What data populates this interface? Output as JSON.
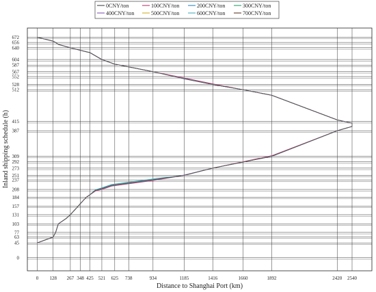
{
  "chart_data": {
    "type": "line",
    "xlabel": "Distance to Shanghai Port (km)",
    "ylabel": "Inland shipping schedule (h)",
    "x_ticks": [
      0,
      128,
      267,
      348,
      425,
      521,
      625,
      738,
      934,
      1185,
      1416,
      1660,
      1892,
      2420,
      2540
    ],
    "y_ticks": [
      0,
      45,
      63,
      77,
      103,
      131,
      157,
      184,
      208,
      237,
      251,
      273,
      292,
      309,
      387,
      415,
      512,
      528,
      552,
      567,
      587,
      604,
      640,
      656,
      672
    ],
    "xlim": [
      -80,
      2700
    ],
    "ylim": [
      -40,
      700
    ],
    "grid": true,
    "legend_position": "top",
    "colors": {
      "0CNY/ton": "#555555",
      "100CNY/ton": "#c0497a",
      "200CNY/ton": "#3e93c9",
      "300CNY/ton": "#3aa87a",
      "400CNY/ton": "#8a68b8",
      "500CNY/ton": "#d4b43a",
      "600CNY/ton": "#5ab2c2",
      "700CNY/ton": "#6b4a3a"
    },
    "series": [
      {
        "name": "0CNY/ton",
        "x": [
          0,
          128,
          148,
          170,
          235,
          267,
          330,
          348,
          395,
          425,
          470,
          521,
          600,
          934,
          1185,
          1416,
          1892,
          2420,
          2540,
          2540,
          2420,
          1892,
          1660,
          1416,
          1185,
          934,
          625,
          521,
          425,
          348,
          267,
          170,
          148,
          128,
          0
        ],
        "y": [
          45,
          63,
          77,
          103,
          120,
          131,
          157,
          165,
          184,
          192,
          205,
          210,
          220,
          237,
          251,
          273,
          309,
          387,
          400,
          410,
          420,
          495,
          512,
          528,
          545,
          567,
          590,
          604,
          625,
          632,
          640,
          650,
          656,
          660,
          672
        ]
      },
      {
        "name": "100CNY/ton",
        "x": [
          0,
          128,
          148,
          170,
          235,
          267,
          330,
          348,
          395,
          425,
          470,
          521,
          600,
          934,
          1185,
          1416,
          1892,
          2420,
          2540,
          2540,
          2420,
          1892,
          1660,
          1416,
          1185,
          934,
          625,
          521,
          425,
          348,
          267,
          170,
          148,
          128,
          0
        ],
        "y": [
          45,
          63,
          77,
          103,
          120,
          131,
          157,
          165,
          184,
          192,
          203,
          208,
          218,
          235,
          251,
          273,
          311,
          387,
          400,
          410,
          420,
          495,
          512,
          530,
          548,
          567,
          590,
          604,
          625,
          632,
          640,
          650,
          656,
          660,
          672
        ]
      },
      {
        "name": "200CNY/ton",
        "x": [
          0,
          128,
          148,
          170,
          235,
          267,
          330,
          348,
          395,
          425,
          470,
          521,
          600,
          934,
          1185,
          1416,
          1892,
          2420,
          2540,
          2540,
          2420,
          1892,
          1660,
          1416,
          1185,
          934,
          625,
          521,
          425,
          348,
          267,
          170,
          148,
          128,
          0
        ],
        "y": [
          45,
          63,
          77,
          103,
          120,
          131,
          157,
          165,
          184,
          192,
          206,
          212,
          222,
          239,
          251,
          273,
          309,
          387,
          400,
          410,
          420,
          495,
          512,
          528,
          546,
          567,
          590,
          604,
          625,
          632,
          640,
          650,
          656,
          660,
          672
        ]
      },
      {
        "name": "300CNY/ton",
        "x": [
          0,
          128,
          148,
          170,
          235,
          267,
          330,
          348,
          395,
          425,
          470,
          521,
          600,
          934,
          1185,
          1416,
          1892,
          2420,
          2540,
          2540,
          2420,
          1892,
          1660,
          1416,
          1185,
          934,
          625,
          521,
          425,
          348,
          267,
          170,
          148,
          128,
          0
        ],
        "y": [
          45,
          63,
          77,
          103,
          120,
          131,
          157,
          165,
          184,
          192,
          207,
          213,
          223,
          240,
          251,
          273,
          309,
          387,
          400,
          410,
          420,
          495,
          512,
          528,
          546,
          567,
          590,
          604,
          625,
          632,
          640,
          650,
          656,
          660,
          672
        ]
      },
      {
        "name": "400CNY/ton",
        "x": [
          0,
          128,
          148,
          170,
          235,
          267,
          330,
          348,
          395,
          425,
          470,
          521,
          600,
          934,
          1185,
          1416,
          1892,
          2420,
          2540,
          2540,
          2420,
          1892,
          1660,
          1416,
          1185,
          934,
          625,
          521,
          425,
          348,
          267,
          170,
          148,
          128,
          0
        ],
        "y": [
          45,
          63,
          77,
          103,
          120,
          131,
          157,
          165,
          184,
          192,
          204,
          210,
          220,
          236,
          252,
          273,
          310,
          387,
          400,
          410,
          420,
          495,
          512,
          529,
          547,
          567,
          590,
          604,
          625,
          632,
          640,
          650,
          656,
          660,
          672
        ]
      },
      {
        "name": "500CNY/ton",
        "x": [
          0,
          128,
          148,
          170,
          235,
          267,
          330,
          348,
          395,
          425,
          470,
          521,
          600,
          934,
          1185,
          1416,
          1892,
          2420,
          2540,
          2540,
          2420,
          1892,
          1660,
          1416,
          1185,
          934,
          625,
          521,
          425,
          348,
          267,
          170,
          148,
          128,
          0
        ],
        "y": [
          45,
          63,
          77,
          103,
          120,
          131,
          157,
          165,
          184,
          192,
          205,
          211,
          221,
          237,
          251,
          273,
          309,
          387,
          400,
          410,
          420,
          495,
          512,
          528,
          546,
          567,
          590,
          604,
          625,
          632,
          640,
          650,
          656,
          660,
          672
        ]
      },
      {
        "name": "600CNY/ton",
        "x": [
          0,
          128,
          148,
          170,
          235,
          267,
          330,
          348,
          395,
          425,
          470,
          521,
          600,
          934,
          1185,
          1416,
          1892,
          2420,
          2540,
          2540,
          2420,
          1892,
          1660,
          1416,
          1185,
          934,
          625,
          521,
          425,
          348,
          267,
          170,
          148,
          128,
          0
        ],
        "y": [
          45,
          63,
          77,
          103,
          120,
          131,
          157,
          165,
          184,
          192,
          207,
          212,
          222,
          238,
          251,
          273,
          309,
          387,
          400,
          410,
          420,
          495,
          512,
          528,
          546,
          567,
          590,
          604,
          625,
          632,
          640,
          650,
          656,
          660,
          672
        ]
      },
      {
        "name": "700CNY/ton",
        "x": [
          0,
          128,
          148,
          170,
          235,
          267,
          330,
          348,
          395,
          425,
          470,
          521,
          600,
          934,
          1185,
          1416,
          1892,
          2420,
          2540,
          2540,
          2420,
          1892,
          1660,
          1416,
          1185,
          934,
          625,
          521,
          425,
          348,
          267,
          170,
          148,
          128,
          0
        ],
        "y": [
          45,
          63,
          77,
          103,
          120,
          131,
          157,
          165,
          184,
          192,
          205,
          210,
          220,
          237,
          251,
          273,
          309,
          387,
          400,
          410,
          420,
          495,
          512,
          528,
          546,
          567,
          590,
          604,
          625,
          632,
          640,
          650,
          656,
          660,
          672
        ]
      }
    ]
  }
}
